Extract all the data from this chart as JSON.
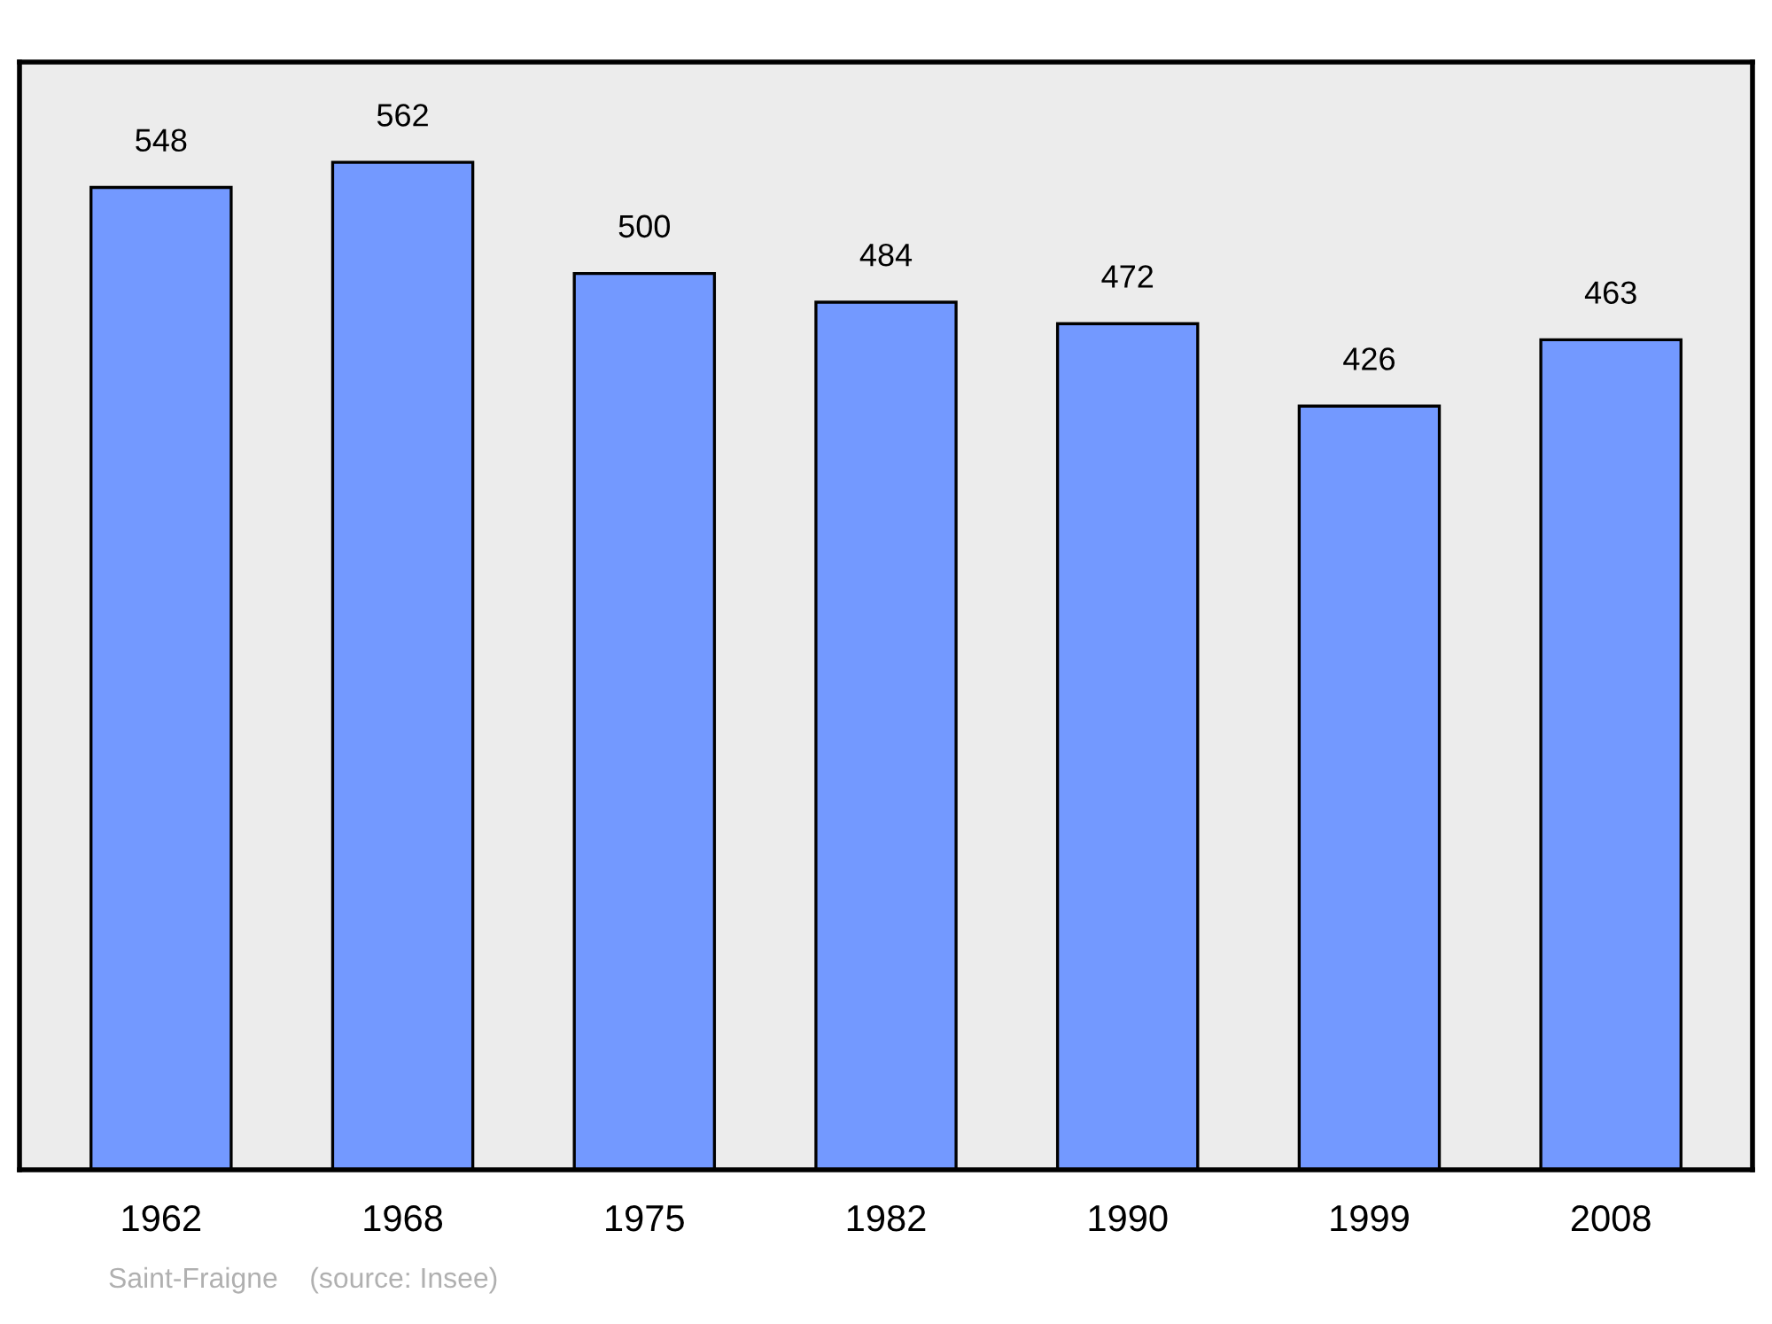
{
  "chart_data": {
    "type": "bar",
    "categories": [
      "1962",
      "1968",
      "1975",
      "1982",
      "1990",
      "1999",
      "2008"
    ],
    "values": [
      548,
      562,
      500,
      484,
      472,
      426,
      463
    ],
    "color": "#7399ff",
    "ylim": [
      0,
      618
    ],
    "data_labels": true,
    "grid": false,
    "tick_labels": "x",
    "annotations": [
      "Saint-Fraigne    (source: Insee)"
    ]
  }
}
